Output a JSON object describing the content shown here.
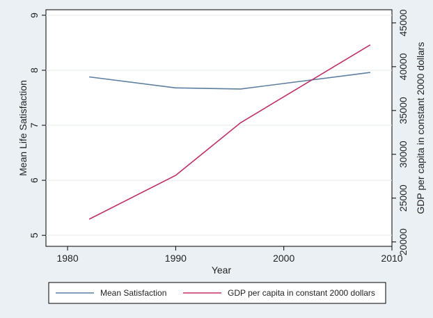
{
  "chart_data": {
    "type": "line",
    "xlabel": "Year",
    "ylabel_left": "Mean Life Satisfaction",
    "ylabel_right": "GDP per capita in constant 2000 dollars",
    "xlim": [
      1978,
      2010
    ],
    "ylim_left": [
      4.8,
      9.1
    ],
    "ylim_right": [
      19500,
      46500
    ],
    "x_ticks": [
      1980,
      1990,
      2000,
      2010
    ],
    "y_left_ticks": [
      5,
      6,
      7,
      8,
      9
    ],
    "y_right_ticks": [
      20000,
      25000,
      30000,
      35000,
      40000,
      45000
    ],
    "grid": true,
    "legend_position": "bottom",
    "series": [
      {
        "name": "Mean Satisfaction",
        "axis": "left",
        "color": "#5a7fa0",
        "x": [
          1982,
          1990,
          1996,
          2008
        ],
        "y": [
          7.88,
          7.68,
          7.66,
          7.96
        ]
      },
      {
        "name": "GDP per capita in constant 2000 dollars",
        "axis": "right",
        "color": "#c0306a",
        "x": [
          1982,
          1990,
          1996,
          2008
        ],
        "y": [
          22600,
          27600,
          33600,
          42500
        ]
      }
    ]
  }
}
